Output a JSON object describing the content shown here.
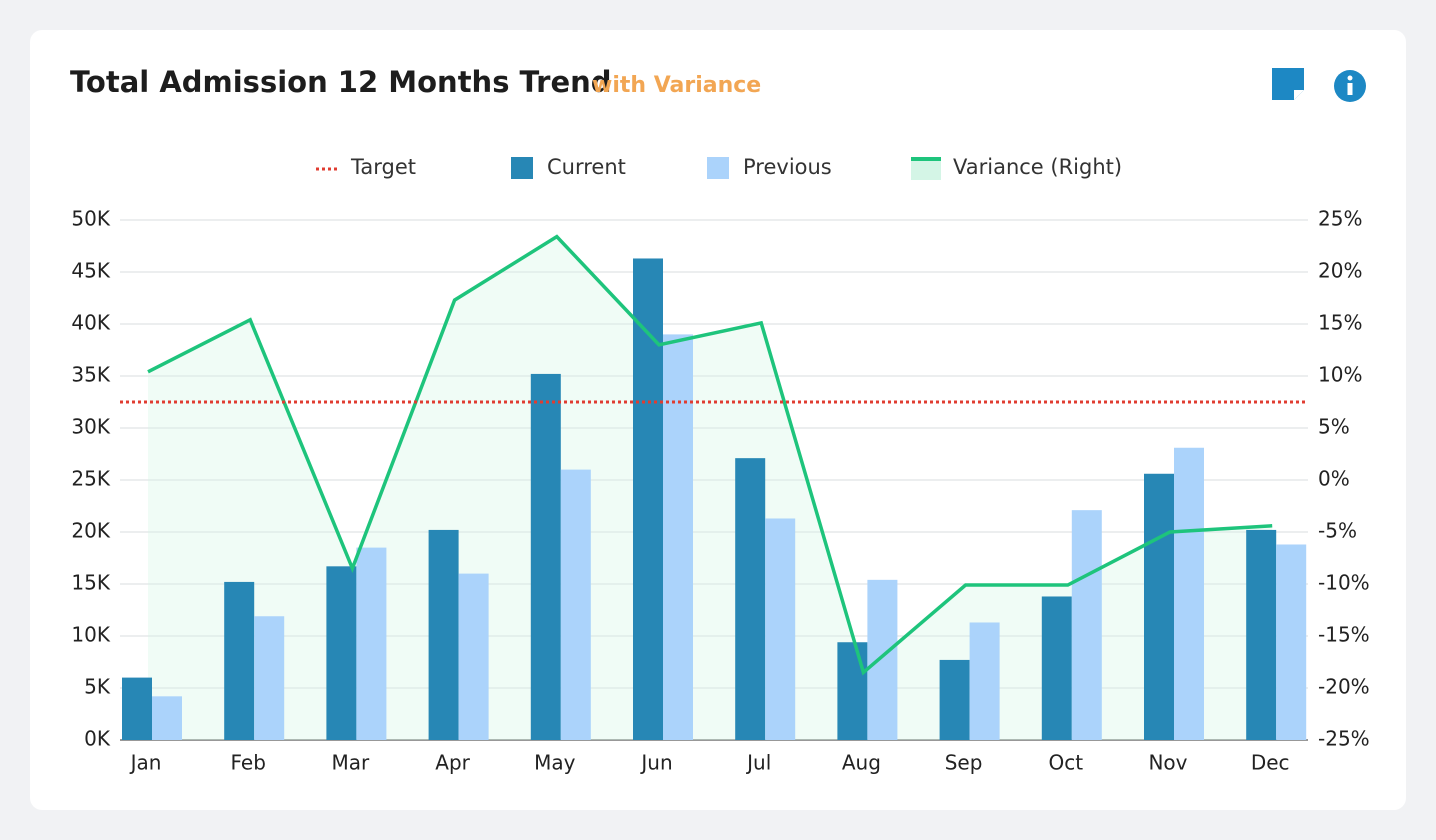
{
  "chart_data": {
    "type": "bar-line",
    "title": "Total Admission 12 Months Trend",
    "subtitle": "with Variance",
    "categories": [
      "Jan",
      "Feb",
      "Mar",
      "Apr",
      "May",
      "Jun",
      "Jul",
      "Aug",
      "Sep",
      "Oct",
      "Nov",
      "Dec"
    ],
    "target": {
      "name": "Target",
      "color": "#e03c31",
      "value": 32500
    },
    "series": [
      {
        "name": "Current",
        "color": "#2787b5",
        "values": [
          6000,
          15200,
          16700,
          20200,
          35200,
          46300,
          27100,
          9400,
          7700,
          13800,
          25600,
          20200
        ]
      },
      {
        "name": "Previous",
        "color": "#abd3fb",
        "values": [
          4200,
          11900,
          18500,
          16000,
          26000,
          39000,
          21300,
          15400,
          11300,
          22100,
          28100,
          18800
        ]
      },
      {
        "name": "Variance (Right)",
        "color": "#1ec47c",
        "fill": "#d4f5e6",
        "axis": "y2",
        "values": [
          10.4,
          15.4,
          -8.5,
          17.3,
          23.4,
          13,
          15.1,
          -18.5,
          -10.1,
          -10.1,
          -5,
          -4.4
        ]
      }
    ],
    "ylim": [
      0,
      50000
    ],
    "yticks": [
      {
        "value": 0,
        "label": "0K"
      },
      {
        "value": 5000,
        "label": "5K"
      },
      {
        "value": 10000,
        "label": "10K"
      },
      {
        "value": 15000,
        "label": "15K"
      },
      {
        "value": 20000,
        "label": "20K"
      },
      {
        "value": 25000,
        "label": "25K"
      },
      {
        "value": 30000,
        "label": "30K"
      },
      {
        "value": 35000,
        "label": "35K"
      },
      {
        "value": 40000,
        "label": "40K"
      },
      {
        "value": 45000,
        "label": "45K"
      },
      {
        "value": 50000,
        "label": "50K"
      }
    ],
    "y2lim": [
      -25,
      25
    ],
    "y2ticks": [
      {
        "value": -25,
        "label": "-25%"
      },
      {
        "value": -20,
        "label": "-20%"
      },
      {
        "value": -15,
        "label": "-15%"
      },
      {
        "value": -10,
        "label": "-10%"
      },
      {
        "value": -5,
        "label": "-5%"
      },
      {
        "value": 0,
        "label": "0%"
      },
      {
        "value": 5,
        "label": "5%"
      },
      {
        "value": 10,
        "label": "10%"
      },
      {
        "value": 15,
        "label": "15%"
      },
      {
        "value": 20,
        "label": "20%"
      },
      {
        "value": 25,
        "label": "25%"
      }
    ],
    "grid": true,
    "legend": "top"
  }
}
